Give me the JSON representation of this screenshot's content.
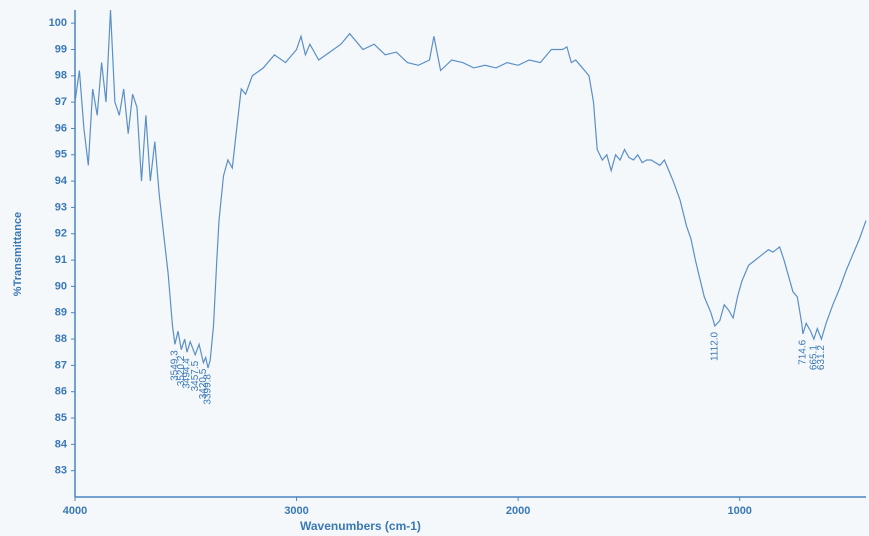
{
  "chart_data": {
    "type": "line",
    "xlabel": "Wavenumbers (cm-1)",
    "ylabel": "%Transmittance",
    "xlim": [
      4000,
      430
    ],
    "xticks": [
      4000,
      3000,
      2000,
      1000
    ],
    "ylim": [
      82,
      100.5
    ],
    "yticks": [
      83,
      84,
      85,
      86,
      87,
      88,
      89,
      90,
      91,
      92,
      93,
      94,
      95,
      96,
      97,
      98,
      99,
      100
    ],
    "color": "#5b8fc6",
    "x": [
      4000,
      3980,
      3960,
      3940,
      3920,
      3900,
      3880,
      3860,
      3840,
      3820,
      3800,
      3780,
      3760,
      3740,
      3720,
      3700,
      3680,
      3660,
      3640,
      3620,
      3600,
      3580,
      3560,
      3549.3,
      3535,
      3520.2,
      3505,
      3494.4,
      3480,
      3457.5,
      3440,
      3420.5,
      3410,
      3399.8,
      3390,
      3375,
      3360,
      3350,
      3330,
      3310,
      3290,
      3270,
      3250,
      3230,
      3200,
      3150,
      3100,
      3050,
      3000,
      2980,
      2960,
      2940,
      2900,
      2850,
      2800,
      2760,
      2700,
      2650,
      2600,
      2550,
      2500,
      2450,
      2400,
      2380,
      2350,
      2300,
      2250,
      2200,
      2150,
      2100,
      2050,
      2000,
      1950,
      1900,
      1850,
      1800,
      1780,
      1760,
      1740,
      1720,
      1700,
      1680,
      1660,
      1643,
      1620,
      1600,
      1580,
      1560,
      1540,
      1520,
      1500,
      1480,
      1460,
      1440,
      1420,
      1400,
      1360,
      1340,
      1300,
      1270,
      1240,
      1220,
      1200,
      1180,
      1160,
      1130,
      1112,
      1090,
      1070,
      1050,
      1030,
      1010,
      990,
      960,
      930,
      900,
      870,
      850,
      820,
      800,
      780,
      760,
      740,
      720,
      714.6,
      700,
      680,
      665.1,
      650,
      631.2,
      610,
      580,
      550,
      520,
      490,
      460,
      430
    ],
    "values": [
      97,
      98.2,
      96,
      94.6,
      97.5,
      96.5,
      98.5,
      97,
      100.5,
      97,
      96.5,
      97.5,
      95.8,
      97.3,
      96.8,
      94,
      96.5,
      94,
      95.5,
      93.5,
      92,
      90.5,
      88.5,
      87.8,
      88.3,
      87.6,
      88,
      87.5,
      87.9,
      87.4,
      87.8,
      87.1,
      87.3,
      86.9,
      87.2,
      88.5,
      91,
      92.5,
      94.2,
      94.8,
      94.5,
      96,
      97.5,
      97.3,
      98,
      98.3,
      98.8,
      98.5,
      99,
      99.5,
      98.8,
      99.2,
      98.6,
      98.9,
      99.2,
      99.6,
      99,
      99.2,
      98.8,
      98.9,
      98.5,
      98.4,
      98.6,
      99.5,
      98.2,
      98.6,
      98.5,
      98.3,
      98.4,
      98.3,
      98.5,
      98.4,
      98.6,
      98.5,
      99,
      99,
      99.1,
      98.5,
      98.6,
      98.4,
      98.2,
      98,
      97,
      95.2,
      94.8,
      95,
      94.4,
      95,
      94.8,
      95.2,
      94.9,
      94.8,
      95,
      94.7,
      94.8,
      94.8,
      94.6,
      94.8,
      94,
      93.3,
      92.3,
      91.8,
      91,
      90.3,
      89.6,
      89,
      88.5,
      88.7,
      89.3,
      89.1,
      88.8,
      89.6,
      90.2,
      90.8,
      91,
      91.2,
      91.4,
      91.3,
      91.5,
      91,
      90.4,
      89.8,
      89.6,
      88.6,
      88.2,
      88.6,
      88.3,
      88,
      88.4,
      88,
      88.6,
      89.3,
      89.9,
      90.6,
      91.2,
      91.8,
      92.5
    ],
    "annotations": [
      {
        "x": 3549.3,
        "label": "3549.3"
      },
      {
        "x": 3520.2,
        "label": "3520.2"
      },
      {
        "x": 3494.4,
        "label": "3494.4"
      },
      {
        "x": 3457.5,
        "label": "3457.5"
      },
      {
        "x": 3420.5,
        "label": "3420.5"
      },
      {
        "x": 3399.8,
        "label": "3399.8"
      },
      {
        "x": 1112,
        "label": "1112.0"
      },
      {
        "x": 714.6,
        "label": "714.6"
      },
      {
        "x": 665.1,
        "label": "665.1"
      },
      {
        "x": 631.2,
        "label": "631.2"
      }
    ]
  }
}
